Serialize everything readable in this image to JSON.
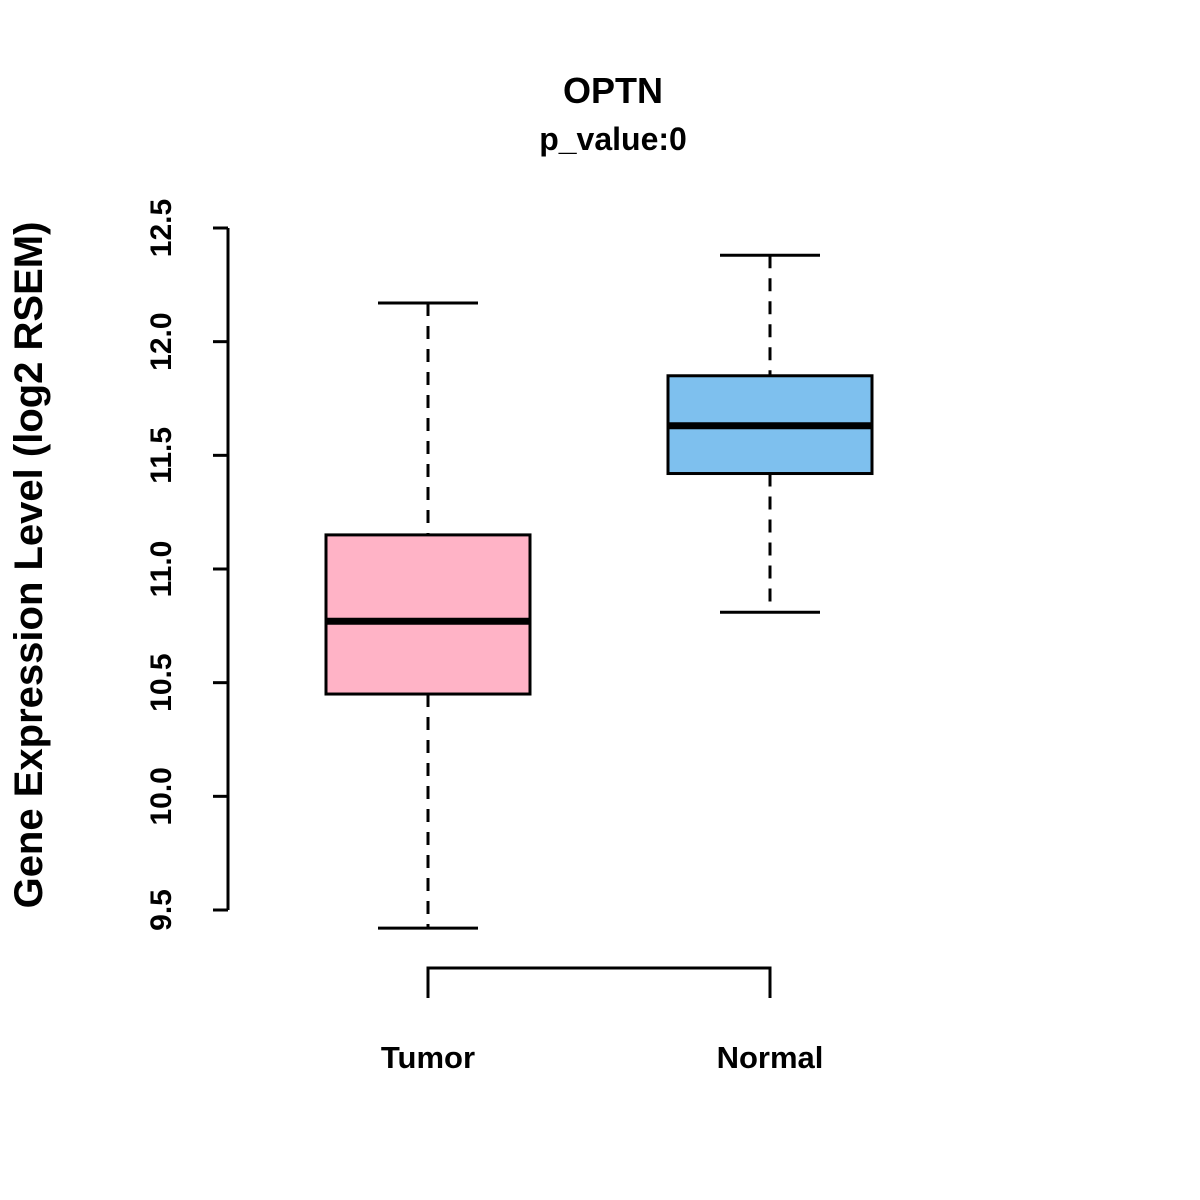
{
  "header": {
    "title": "OPTN",
    "subtitle": "p_value:0"
  },
  "axes": {
    "ylabel": "Gene Expression Level (log2 RSEM)"
  },
  "chart_data": {
    "type": "boxplot",
    "title": "OPTN",
    "subtitle": "p_value:0",
    "xlabel": "",
    "ylabel": "Gene Expression Level (log2 RSEM)",
    "ylim": [
      9.5,
      12.5
    ],
    "yticks": [
      "9.5",
      "10.0",
      "10.5",
      "11.0",
      "11.5",
      "12.0",
      "12.5"
    ],
    "grid": false,
    "legend": "none",
    "categories": [
      "Tumor",
      "Normal"
    ],
    "series": [
      {
        "name": "Tumor",
        "color": "#FFB3C6",
        "whisker_low": 9.42,
        "q1": 10.45,
        "median": 10.77,
        "q3": 11.15,
        "whisker_high": 12.17
      },
      {
        "name": "Normal",
        "color": "#7EC0EE",
        "whisker_low": 10.81,
        "q1": 11.42,
        "median": 11.63,
        "q3": 11.85,
        "whisker_high": 12.38
      }
    ],
    "style": {
      "box_border_color": "#000000",
      "median_color": "#000000",
      "whisker_style": "dashed",
      "background": "#ffffff"
    }
  }
}
